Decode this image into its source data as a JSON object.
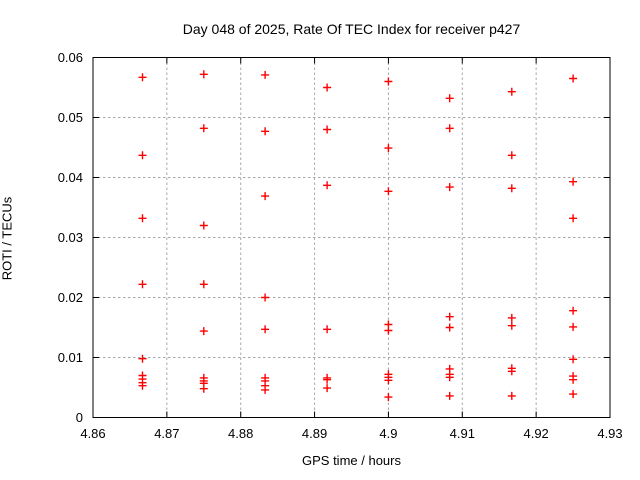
{
  "chart": {
    "title": "Day 048 of 2025, Rate Of TEC Index for receiver p427",
    "xlabel": "GPS time / hours",
    "ylabel": "ROTI / TECUs"
  },
  "chart_data": {
    "type": "scatter",
    "title": "Day 048 of 2025, Rate Of TEC Index for receiver p427",
    "xlabel": "GPS time / hours",
    "ylabel": "ROTI / TECUs",
    "xlim": [
      4.86,
      4.93
    ],
    "ylim": [
      0,
      0.06
    ],
    "x_tick_labels": [
      "4.86",
      "4.87",
      "4.88",
      "4.89",
      "4.9",
      "4.91",
      "4.92",
      "4.93"
    ],
    "y_tick_labels": [
      "0",
      "0.01",
      "0.02",
      "0.03",
      "0.04",
      "0.05",
      "0.06"
    ],
    "grid": true,
    "legend_position": "none",
    "marker": {
      "shape": "plus",
      "color": "#ff0000"
    },
    "grid_color": "#a8a8a8",
    "border_color": "#000000",
    "series": [
      {
        "name": "ROTI",
        "points": [
          [
            4.8667,
            0.0567
          ],
          [
            4.8667,
            0.0437
          ],
          [
            4.8667,
            0.0332
          ],
          [
            4.8667,
            0.0222
          ],
          [
            4.8667,
            0.0098
          ],
          [
            4.8667,
            0.007
          ],
          [
            4.8667,
            0.0064
          ],
          [
            4.8667,
            0.0058
          ],
          [
            4.8667,
            0.0053
          ],
          [
            4.875,
            0.0572
          ],
          [
            4.875,
            0.0482
          ],
          [
            4.875,
            0.032
          ],
          [
            4.875,
            0.0222
          ],
          [
            4.875,
            0.0144
          ],
          [
            4.875,
            0.0066
          ],
          [
            4.875,
            0.0061
          ],
          [
            4.875,
            0.0057
          ],
          [
            4.875,
            0.0048
          ],
          [
            4.8833,
            0.0571
          ],
          [
            4.8833,
            0.0477
          ],
          [
            4.8833,
            0.0369
          ],
          [
            4.8833,
            0.02
          ],
          [
            4.8833,
            0.0147
          ],
          [
            4.8833,
            0.0066
          ],
          [
            4.8833,
            0.0061
          ],
          [
            4.8833,
            0.0053
          ],
          [
            4.8833,
            0.0046
          ],
          [
            4.8917,
            0.055
          ],
          [
            4.8917,
            0.048
          ],
          [
            4.8917,
            0.0387
          ],
          [
            4.8917,
            0.0147
          ],
          [
            4.8917,
            0.0066
          ],
          [
            4.8917,
            0.0063
          ],
          [
            4.8917,
            0.0049
          ],
          [
            4.9,
            0.056
          ],
          [
            4.9,
            0.0449
          ],
          [
            4.9,
            0.0377
          ],
          [
            4.9,
            0.0155
          ],
          [
            4.9,
            0.0145
          ],
          [
            4.9,
            0.0072
          ],
          [
            4.9,
            0.0067
          ],
          [
            4.9,
            0.0062
          ],
          [
            4.9,
            0.0034
          ],
          [
            4.9083,
            0.0532
          ],
          [
            4.9083,
            0.0482
          ],
          [
            4.9083,
            0.0384
          ],
          [
            4.9083,
            0.0168
          ],
          [
            4.9083,
            0.015
          ],
          [
            4.9083,
            0.0081
          ],
          [
            4.9083,
            0.0072
          ],
          [
            4.9083,
            0.0067
          ],
          [
            4.9083,
            0.0036
          ],
          [
            4.9167,
            0.0543
          ],
          [
            4.9167,
            0.0437
          ],
          [
            4.9167,
            0.0382
          ],
          [
            4.9167,
            0.0166
          ],
          [
            4.9167,
            0.0153
          ],
          [
            4.9167,
            0.0082
          ],
          [
            4.9167,
            0.0077
          ],
          [
            4.9167,
            0.0036
          ],
          [
            4.925,
            0.0565
          ],
          [
            4.925,
            0.0393
          ],
          [
            4.925,
            0.0332
          ],
          [
            4.925,
            0.0178
          ],
          [
            4.925,
            0.0151
          ],
          [
            4.925,
            0.0097
          ],
          [
            4.925,
            0.0069
          ],
          [
            4.925,
            0.0063
          ],
          [
            4.925,
            0.0039
          ]
        ]
      }
    ]
  }
}
